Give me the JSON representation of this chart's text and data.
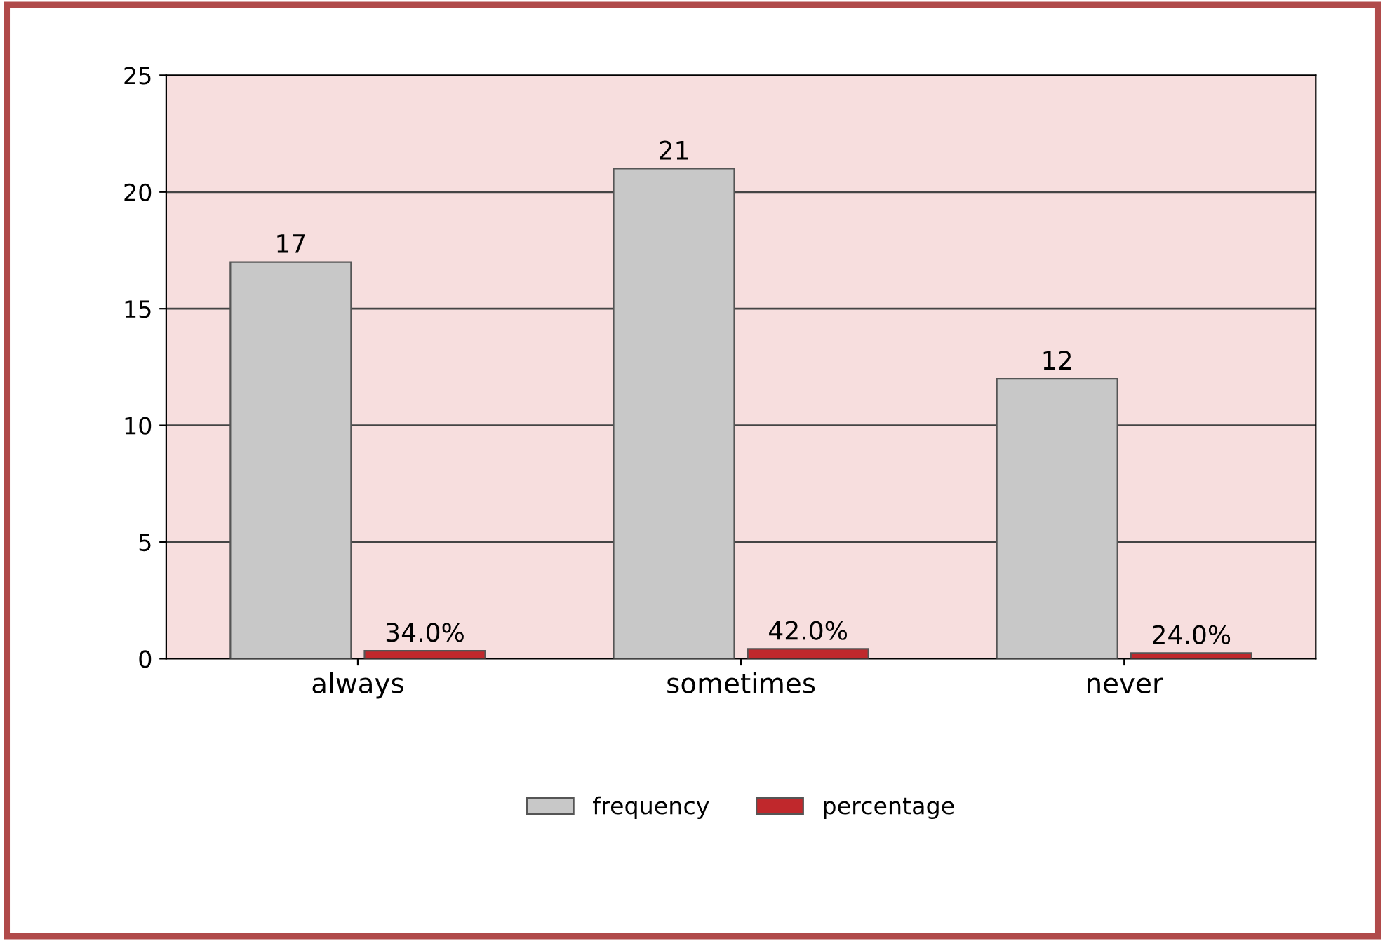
{
  "chart_data": {
    "type": "bar",
    "categories": [
      "always",
      "sometimes",
      "never"
    ],
    "series": [
      {
        "name": "frequency",
        "color": "#c8c8c8",
        "values": [
          17,
          21,
          12
        ],
        "value_labels": [
          "17",
          "21",
          "12"
        ]
      },
      {
        "name": "percentage",
        "color": "#c0282c",
        "values": [
          0.34,
          0.42,
          0.24
        ],
        "value_labels": [
          "34.0%",
          "42.0%",
          "24.0%"
        ]
      }
    ],
    "ylim": [
      0,
      25
    ],
    "yticks": [
      0,
      5,
      10,
      15,
      20,
      25
    ],
    "grid": "y",
    "legend": "bottom"
  }
}
